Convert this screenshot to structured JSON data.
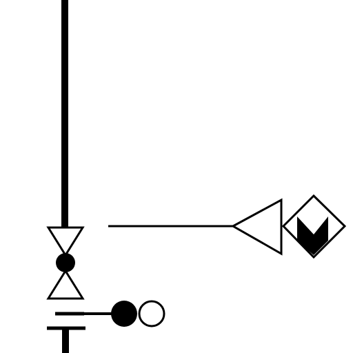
{
  "diagram": {
    "symbols": [
      {
        "id": "main-pipe",
        "icon": "thick-vertical-line"
      },
      {
        "id": "valve",
        "icon": "bowtie-valve-icon",
        "body": "filled-circle"
      },
      {
        "id": "signal-line",
        "icon": "thin-horizontal-line"
      },
      {
        "id": "arrow-marker",
        "icon": "outline-left-triangle-icon"
      },
      {
        "id": "indicator",
        "icon": "diamond-with-filled-notch-icon"
      },
      {
        "id": "plate",
        "icon": "double-bar-icon"
      },
      {
        "id": "probe",
        "icon": "filled-and-open-circle-icon"
      }
    ],
    "colors": {
      "stroke": "#000000",
      "fill_dark": "#000000",
      "fill_light": "#ffffff",
      "background": "#ffffff"
    }
  }
}
